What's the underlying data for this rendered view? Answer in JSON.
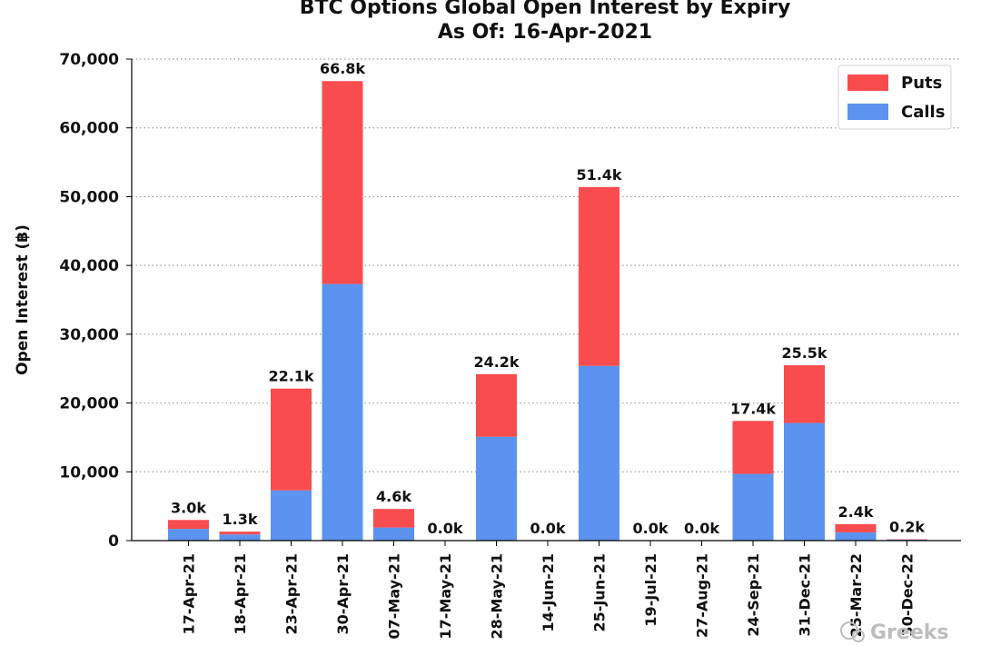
{
  "chart_data": {
    "type": "bar",
    "stacked": true,
    "title": "BTC Options Global Open Interest by Expiry",
    "subtitle": "As Of: 16-Apr-2021",
    "xlabel": "",
    "ylabel": "Open Interest (฿)",
    "ylim": [
      0,
      70000
    ],
    "yticks": [
      0,
      10000,
      20000,
      30000,
      40000,
      50000,
      60000,
      70000
    ],
    "ytick_labels": [
      "0",
      "10,000",
      "20,000",
      "30,000",
      "40,000",
      "50,000",
      "60,000",
      "70,000"
    ],
    "grid": "horizontal dotted",
    "legend_position": "top-right",
    "categories": [
      "17-Apr-21",
      "18-Apr-21",
      "23-Apr-21",
      "30-Apr-21",
      "07-May-21",
      "17-May-21",
      "28-May-21",
      "14-Jun-21",
      "25-Jun-21",
      "19-Jul-21",
      "27-Aug-21",
      "24-Sep-21",
      "31-Dec-21",
      "25-Mar-22",
      "30-Dec-22"
    ],
    "series": [
      {
        "name": "Calls",
        "color": "#5b93ee",
        "values": [
          1700,
          900,
          7300,
          37300,
          1900,
          0,
          15100,
          0,
          25400,
          0,
          0,
          9700,
          17100,
          1200,
          150
        ]
      },
      {
        "name": "Puts",
        "color": "#f94c4f",
        "values": [
          1300,
          400,
          14800,
          29500,
          2700,
          0,
          9100,
          0,
          26000,
          0,
          0,
          7700,
          8400,
          1200,
          50
        ]
      }
    ],
    "data_labels": [
      "3.0k",
      "1.3k",
      "22.1k",
      "66.8k",
      "4.6k",
      "0.0k",
      "24.2k",
      "0.0k",
      "51.4k",
      "0.0k",
      "0.0k",
      "17.4k",
      "25.5k",
      "2.4k",
      "0.2k"
    ],
    "legend_order": [
      "Puts",
      "Calls"
    ]
  },
  "watermark": "Greeks"
}
